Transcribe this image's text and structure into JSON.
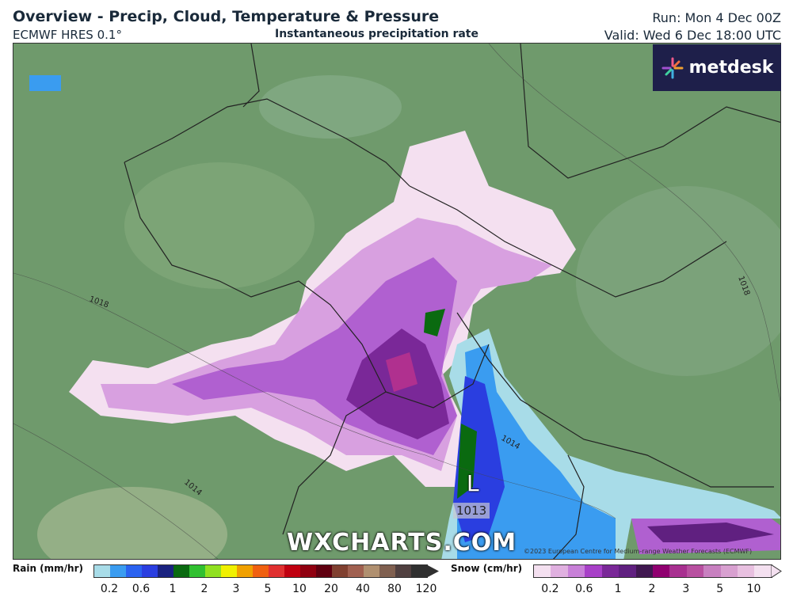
{
  "header": {
    "title": "Overview - Precip, Cloud, Temperature & Pressure",
    "model": "ECMWF HRES 0.1°",
    "subtitle": "Instantaneous precipitation rate",
    "run": "Run: Mon 4 Dec 00Z",
    "valid": "Valid: Wed 6 Dec 18:00 UTC"
  },
  "logo": "metdesk",
  "watermark": "WXCHARTS.COM",
  "copyright": "©2023 European Centre for Medium-range Weather Forecasts (ECMWF)",
  "map": {
    "low_label": "L",
    "low_pressure": "1013",
    "isobars": [
      "1018",
      "1018",
      "1014",
      "1014"
    ]
  },
  "legend": {
    "rain": {
      "label": "Rain (mm/hr)",
      "ticks": [
        "0.2",
        "0.6",
        "1",
        "2",
        "3",
        "5",
        "10",
        "20",
        "40",
        "80",
        "120"
      ],
      "colors": [
        "#a8dce8",
        "#3a9cf0",
        "#2a62f0",
        "#2a3ee0",
        "#1a2280",
        "#0a6a10",
        "#30c030",
        "#90e020",
        "#f0f000",
        "#f0a000",
        "#f06010",
        "#e03030",
        "#c00010",
        "#900010",
        "#600010",
        "#804030",
        "#a06050",
        "#b09070",
        "#806050",
        "#504040",
        "#303030"
      ]
    },
    "snow": {
      "label": "Snow (cm/hr)",
      "ticks": [
        "0.2",
        "0.6",
        "1",
        "2",
        "3",
        "5",
        "10"
      ],
      "colors": [
        "#f4e0f0",
        "#e0b0e0",
        "#c880d8",
        "#a840c8",
        "#7a2898",
        "#602080",
        "#401850",
        "#900070",
        "#a83090",
        "#b850a0",
        "#c880c0",
        "#d8a0d0",
        "#e8c0e0",
        "#f4e0f0"
      ]
    }
  }
}
